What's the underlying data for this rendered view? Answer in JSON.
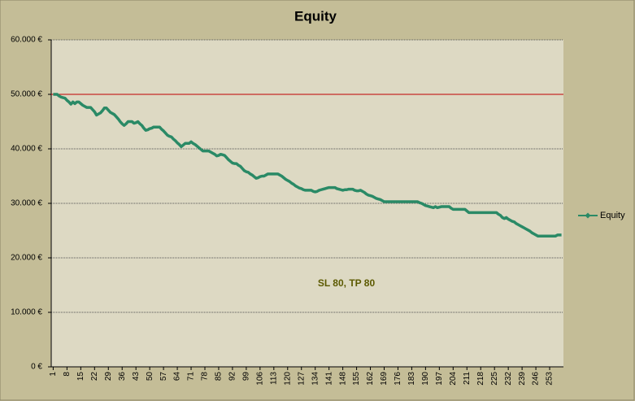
{
  "chart_data": {
    "type": "line",
    "title": "Equity",
    "annotation": "SL 80, TP 80",
    "x": [
      1,
      2,
      3,
      4,
      5,
      6,
      7,
      8,
      9,
      10,
      11,
      12,
      13,
      14,
      15,
      16,
      17,
      18,
      19,
      20,
      21,
      22,
      23,
      24,
      25,
      26,
      27,
      28,
      29,
      30,
      31,
      32,
      33,
      34,
      35,
      36,
      37,
      38,
      39,
      40,
      41,
      42,
      43,
      44,
      45,
      46,
      47,
      48,
      49,
      50,
      51,
      52,
      53,
      54,
      55,
      56,
      57,
      58,
      59,
      60,
      61,
      62,
      63,
      64,
      65,
      66,
      67,
      68,
      69,
      70,
      71,
      72,
      73,
      74,
      75,
      76,
      77,
      78,
      79,
      80,
      81,
      82,
      83,
      84,
      85,
      86,
      87,
      88,
      89,
      90,
      91,
      92,
      93,
      94,
      95,
      96,
      97,
      98,
      99,
      100,
      101,
      102,
      103,
      104,
      105,
      106,
      107,
      108,
      109,
      110,
      111,
      112,
      113,
      114,
      115,
      116,
      117,
      118,
      119,
      120,
      121,
      122,
      123,
      124,
      125,
      126,
      127,
      128,
      129,
      130,
      131,
      132,
      133,
      134,
      135,
      136,
      137,
      138,
      139,
      140,
      141,
      142,
      143,
      144,
      145,
      146,
      147,
      148,
      149,
      150,
      151,
      152,
      153,
      154,
      155,
      156,
      157,
      158,
      159,
      160,
      161,
      162,
      163,
      164,
      165,
      166,
      167,
      168,
      169,
      170,
      171,
      172,
      173,
      174,
      175,
      176,
      177,
      178,
      179,
      180,
      181,
      182,
      183,
      184,
      185,
      186,
      187,
      188,
      189,
      190,
      191,
      192,
      193,
      194,
      195,
      196,
      197,
      198,
      199,
      200,
      201,
      202,
      203,
      204,
      205,
      206,
      207,
      208,
      209,
      210,
      211,
      212,
      213,
      214,
      215,
      216,
      217,
      218,
      219,
      220,
      221,
      222,
      223,
      224,
      225,
      226,
      227,
      228,
      229,
      230,
      231,
      232,
      233,
      234,
      235,
      236,
      237,
      238,
      239,
      240,
      241,
      242,
      243,
      244,
      245,
      246,
      247,
      248,
      249,
      250,
      251,
      252,
      253,
      254,
      255,
      256,
      257,
      258,
      259
    ],
    "series": [
      {
        "name": "Equity",
        "color": "#2a8a66",
        "values": [
          50000,
          50000,
          50000,
          49700,
          49500,
          49400,
          49300,
          48900,
          48600,
          48200,
          48600,
          48300,
          48600,
          48600,
          48300,
          48000,
          47800,
          47600,
          47600,
          47600,
          47200,
          46800,
          46200,
          46400,
          46600,
          47000,
          47500,
          47500,
          47100,
          46700,
          46500,
          46300,
          45900,
          45500,
          45000,
          44600,
          44300,
          44600,
          45000,
          45000,
          45000,
          44700,
          44800,
          45000,
          44600,
          44300,
          43800,
          43400,
          43500,
          43700,
          43800,
          44000,
          44000,
          44000,
          44000,
          43600,
          43300,
          42900,
          42500,
          42300,
          42200,
          41800,
          41500,
          41100,
          40800,
          40400,
          40700,
          41000,
          41000,
          41000,
          41300,
          41000,
          40800,
          40500,
          40200,
          39900,
          39600,
          39600,
          39600,
          39600,
          39400,
          39200,
          39000,
          38700,
          38800,
          39000,
          38900,
          38800,
          38400,
          38000,
          37700,
          37400,
          37300,
          37300,
          37000,
          36800,
          36400,
          36000,
          35800,
          35700,
          35400,
          35200,
          34900,
          34600,
          34700,
          34900,
          35000,
          35000,
          35200,
          35400,
          35400,
          35400,
          35400,
          35400,
          35400,
          35200,
          35000,
          34700,
          34400,
          34200,
          34000,
          33700,
          33500,
          33200,
          33000,
          32800,
          32700,
          32500,
          32400,
          32400,
          32400,
          32400,
          32200,
          32100,
          32200,
          32400,
          32500,
          32600,
          32700,
          32800,
          32900,
          32900,
          32900,
          32900,
          32700,
          32600,
          32500,
          32400,
          32500,
          32500,
          32600,
          32600,
          32600,
          32400,
          32300,
          32300,
          32400,
          32200,
          32000,
          31700,
          31500,
          31400,
          31300,
          31100,
          30900,
          30800,
          30700,
          30500,
          30300,
          30300,
          30300,
          30300,
          30300,
          30300,
          30300,
          30300,
          30300,
          30300,
          30300,
          30300,
          30300,
          30300,
          30300,
          30300,
          30300,
          30300,
          30100,
          30000,
          29800,
          29600,
          29500,
          29400,
          29300,
          29200,
          29400,
          29200,
          29300,
          29400,
          29400,
          29400,
          29400,
          29400,
          29100,
          28900,
          28900,
          28900,
          28900,
          28900,
          28900,
          28900,
          28600,
          28300,
          28300,
          28300,
          28300,
          28300,
          28300,
          28300,
          28300,
          28300,
          28300,
          28300,
          28300,
          28300,
          28300,
          28300,
          28000,
          27800,
          27400,
          27200,
          27400,
          27100,
          26900,
          26700,
          26600,
          26300,
          26100,
          25900,
          25700,
          25500,
          25300,
          25100,
          24900,
          24600,
          24400,
          24200,
          24000,
          24000,
          24000,
          24000,
          24000,
          24000,
          24000,
          24000,
          24000,
          24000,
          24200,
          24200,
          24200
        ]
      }
    ],
    "reference_line": {
      "value": 50000,
      "color": "#c00000"
    },
    "xlim": [
      0,
      260
    ],
    "xticks": [
      1,
      8,
      15,
      22,
      29,
      36,
      43,
      50,
      57,
      64,
      71,
      78,
      85,
      92,
      99,
      106,
      113,
      120,
      127,
      134,
      141,
      148,
      155,
      162,
      169,
      176,
      183,
      190,
      197,
      204,
      211,
      218,
      225,
      232,
      239,
      246,
      253
    ],
    "ylim": [
      0,
      60000
    ],
    "yticks": [
      {
        "value": 0,
        "label": "0 €"
      },
      {
        "value": 10000,
        "label": "10.000 €"
      },
      {
        "value": 20000,
        "label": "20.000 €"
      },
      {
        "value": 30000,
        "label": "30.000 €"
      },
      {
        "value": 40000,
        "label": "40.000 €"
      },
      {
        "value": 50000,
        "label": "50.000 €"
      },
      {
        "value": 60000,
        "label": "60.000 €"
      }
    ],
    "grid": true,
    "legend": "right"
  }
}
